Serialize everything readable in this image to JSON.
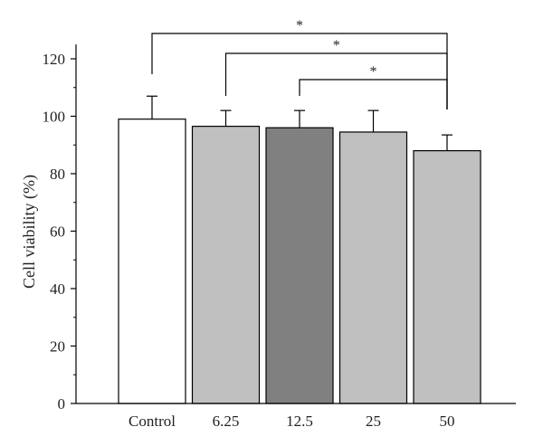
{
  "chart_data": {
    "type": "bar",
    "categories": [
      "Control",
      "6.25",
      "12.5",
      "25",
      "50"
    ],
    "values": [
      99,
      96.5,
      96,
      94.5,
      88
    ],
    "errors": [
      8,
      5.5,
      6,
      7.5,
      5.5
    ],
    "bar_colors": [
      "#ffffff",
      "#c0c0c0",
      "#808080",
      "#c0c0c0",
      "#c0c0c0"
    ],
    "ylabel": "Cell viability (%)",
    "xlabel": "",
    "title": "",
    "ylim": [
      0,
      125
    ],
    "yticks": [
      0,
      20,
      40,
      60,
      80,
      100,
      120
    ],
    "grid": false,
    "significance": [
      {
        "from": "Control",
        "to": "50",
        "label": "*"
      },
      {
        "from": "6.25",
        "to": "50",
        "label": "*"
      },
      {
        "from": "12.5",
        "to": "50",
        "label": "*"
      }
    ]
  }
}
